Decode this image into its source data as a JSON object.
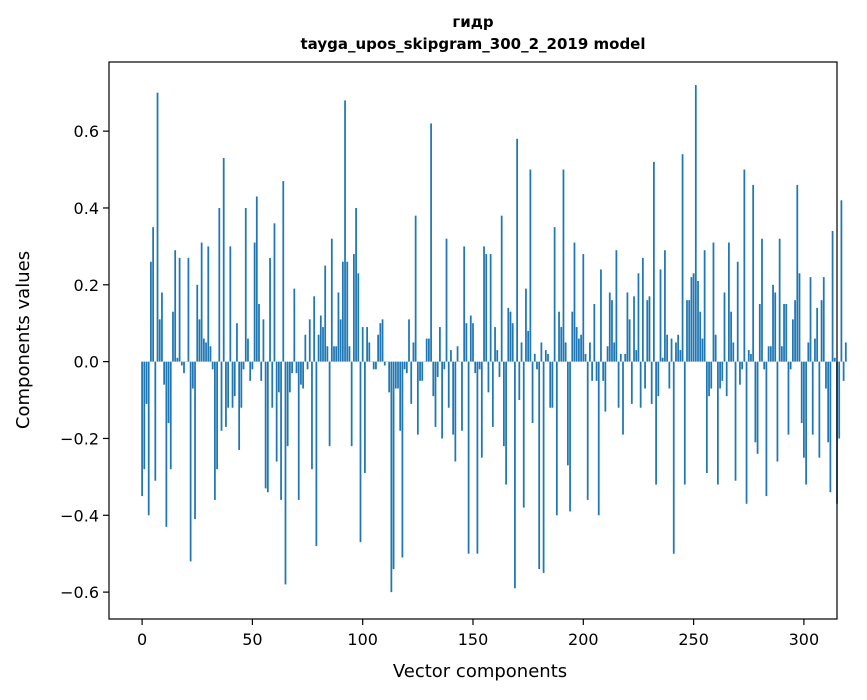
{
  "chart_data": {
    "type": "bar",
    "title": "гидр",
    "subtitle": "tayga_upos_skipgram_300_2_2019 model",
    "xlabel": "Vector components",
    "ylabel": "Components values",
    "xlim": [
      -15,
      315
    ],
    "ylim": [
      -0.67,
      0.78
    ],
    "xticks": [
      0,
      50,
      100,
      150,
      200,
      250,
      300
    ],
    "yticks": [
      -0.6,
      -0.4,
      -0.2,
      0.0,
      0.2,
      0.4,
      0.6
    ],
    "ytick_labels": [
      "−0.6",
      "−0.4",
      "−0.2",
      "0.0",
      "0.2",
      "0.4",
      "0.6"
    ],
    "bar_color": "#1f77b4",
    "grid": false,
    "legend": "none",
    "values": [
      -0.35,
      -0.28,
      -0.11,
      -0.4,
      0.26,
      0.35,
      -0.31,
      0.7,
      0.11,
      0.18,
      -0.06,
      -0.43,
      -0.16,
      -0.28,
      0.13,
      0.29,
      0.01,
      0.27,
      -0.01,
      -0.03,
      0.0,
      0.27,
      -0.52,
      -0.07,
      -0.41,
      0.2,
      0.11,
      0.31,
      0.06,
      0.05,
      0.3,
      0.04,
      -0.02,
      -0.36,
      -0.28,
      0.4,
      -0.18,
      0.53,
      -0.17,
      -0.12,
      0.3,
      -0.12,
      -0.09,
      0.1,
      -0.23,
      -0.12,
      -0.02,
      0.4,
      0.06,
      -0.05,
      -0.02,
      0.31,
      0.43,
      0.15,
      -0.05,
      0.11,
      -0.33,
      -0.34,
      0.27,
      -0.12,
      0.36,
      -0.26,
      -0.08,
      -0.36,
      0.47,
      -0.58,
      -0.22,
      -0.08,
      -0.03,
      0.19,
      -0.03,
      -0.36,
      -0.06,
      -0.07,
      0.07,
      -0.02,
      0.11,
      -0.28,
      0.17,
      -0.48,
      0.07,
      0.12,
      0.09,
      0.25,
      0.04,
      -0.22,
      0.32,
      0.04,
      0.04,
      0.18,
      0.11,
      0.26,
      0.68,
      0.26,
      0.04,
      -0.22,
      0.28,
      0.4,
      0.23,
      -0.47,
      0.09,
      -0.29,
      0.09,
      0.05,
      0.0,
      -0.02,
      -0.02,
      0.07,
      0.1,
      0.11,
      -0.01,
      0.0,
      -0.08,
      -0.6,
      -0.54,
      -0.07,
      -0.07,
      -0.18,
      -0.51,
      -0.02,
      -0.03,
      0.11,
      -0.11,
      0.05,
      0.38,
      -0.19,
      -0.05,
      -0.05,
      0.0,
      0.06,
      0.06,
      0.62,
      -0.09,
      -0.17,
      -0.04,
      0.09,
      -0.2,
      -0.02,
      0.32,
      -0.12,
      0.03,
      -0.19,
      -0.26,
      0.04,
      0.0,
      -0.18,
      0.3,
      0.1,
      -0.5,
      0.12,
      0.1,
      -0.03,
      -0.5,
      -0.02,
      -0.25,
      0.3,
      0.28,
      -0.08,
      0.28,
      -0.17,
      0.09,
      0.03,
      -0.04,
      0.38,
      -0.22,
      -0.32,
      0.14,
      0.13,
      0.1,
      -0.59,
      0.58,
      -0.1,
      0.05,
      -0.38,
      0.19,
      0.08,
      0.5,
      -0.16,
      0.02,
      -0.02,
      -0.54,
      0.05,
      -0.55,
      0.03,
      0.02,
      -0.12,
      -0.12,
      0.35,
      -0.4,
      0.13,
      0.09,
      0.5,
      0.05,
      -0.27,
      -0.39,
      0.13,
      0.31,
      0.09,
      0.06,
      0.07,
      0.28,
      0.02,
      -0.36,
      0.05,
      -0.05,
      0.15,
      -0.05,
      -0.4,
      0.24,
      -0.05,
      -0.13,
      0.04,
      0.18,
      0.16,
      0.05,
      0.29,
      -0.12,
      0.02,
      -0.19,
      0.02,
      0.18,
      0.11,
      -0.11,
      0.17,
      0.03,
      0.23,
      -0.12,
      0.27,
      -0.07,
      0.16,
      0.17,
      -0.11,
      0.52,
      -0.32,
      -0.09,
      0.24,
      0.01,
      0.29,
      0.07,
      -0.07,
      0.06,
      -0.5,
      0.05,
      0.07,
      0.03,
      0.54,
      -0.32,
      0.16,
      0.16,
      0.22,
      0.23,
      0.72,
      0.21,
      0.13,
      0.06,
      0.29,
      -0.29,
      -0.09,
      -0.07,
      0.31,
      0.07,
      -0.32,
      -0.07,
      -0.05,
      0.18,
      -0.09,
      0.31,
      0.13,
      0.05,
      -0.31,
      0.26,
      -0.06,
      -0.02,
      0.5,
      -0.37,
      0.03,
      0.02,
      0.46,
      -0.21,
      -0.24,
      0.15,
      0.32,
      -0.02,
      -0.35,
      0.04,
      0.04,
      0.2,
      0.18,
      -0.26,
      0.32,
      0.04,
      0.15,
      0.15,
      -0.19,
      -0.02,
      0.11,
      0.16,
      0.46,
      0.23,
      -0.16,
      -0.25,
      -0.32,
      0.05,
      0.22,
      -0.19,
      0.06,
      0.14,
      -0.25,
      0.16,
      0.22,
      -0.07,
      -0.21,
      -0.34,
      0.34,
      0.01,
      -0.37,
      -0.2,
      0.42,
      -0.05,
      0.05
    ]
  }
}
